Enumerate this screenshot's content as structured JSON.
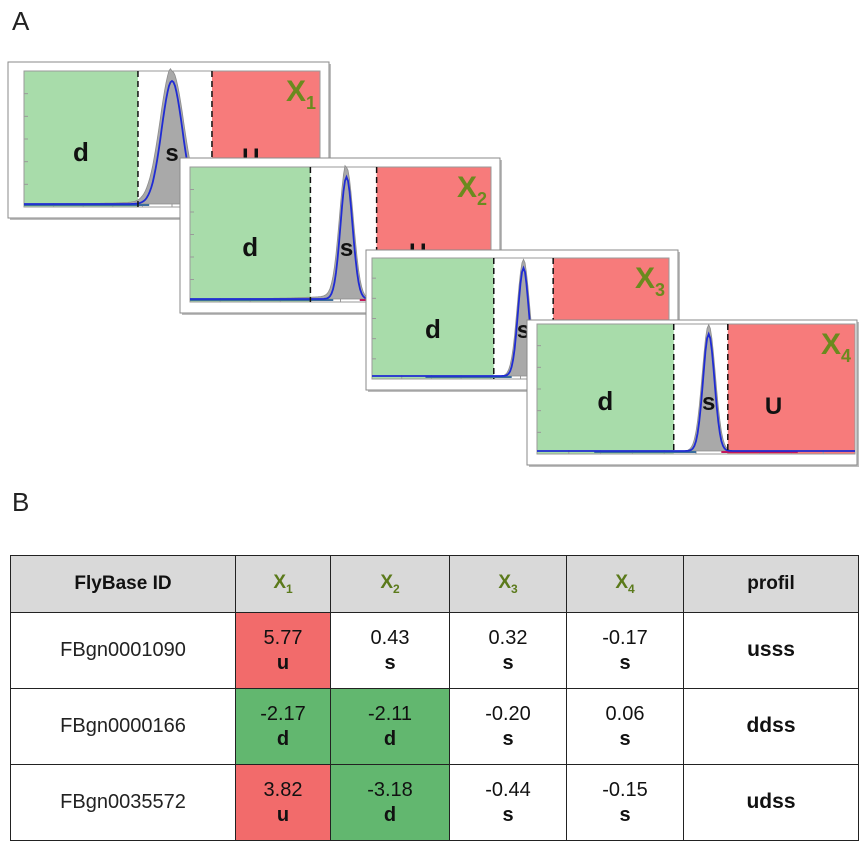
{
  "panel_a_label": "A",
  "panel_b_label": "B",
  "region_labels": {
    "down": "d",
    "steady": "s",
    "up": "U"
  },
  "variable_letter": "X",
  "colors": {
    "down_region": "#a8dcaa",
    "up_region": "#f77b7b",
    "density_fill": "#a9a9a9",
    "fit_curve": "#1f2bd4",
    "title_green": "#6b8a1e",
    "table_up": "#f26b6b",
    "table_down": "#62b76f",
    "header_bg": "#d9d9d9"
  },
  "plots": [
    {
      "name": "X",
      "subscript": "1"
    },
    {
      "name": "X",
      "subscript": "2"
    },
    {
      "name": "X",
      "subscript": "3"
    },
    {
      "name": "X",
      "subscript": "4"
    }
  ],
  "table": {
    "headers": {
      "id": "FlyBase ID",
      "x1": "X",
      "x1_sub": "1",
      "x2": "X",
      "x2_sub": "2",
      "x3": "X",
      "x3_sub": "3",
      "x4": "X",
      "x4_sub": "4",
      "profile": "profil"
    },
    "rows": [
      {
        "id": "FBgn0001090",
        "cells": [
          {
            "value": "5.77",
            "cls": "u"
          },
          {
            "value": "0.43",
            "cls": "s"
          },
          {
            "value": "0.32",
            "cls": "s"
          },
          {
            "value": "-0.17",
            "cls": "s"
          }
        ],
        "profile": "usss"
      },
      {
        "id": "FBgn0000166",
        "cells": [
          {
            "value": "-2.17",
            "cls": "d"
          },
          {
            "value": "-2.11",
            "cls": "d"
          },
          {
            "value": "-0.20",
            "cls": "s"
          },
          {
            "value": "0.06",
            "cls": "s"
          }
        ],
        "profile": "ddss"
      },
      {
        "id": "FBgn0035572",
        "cells": [
          {
            "value": "3.82",
            "cls": "u"
          },
          {
            "value": "-3.18",
            "cls": "d"
          },
          {
            "value": "-0.44",
            "cls": "s"
          },
          {
            "value": "-0.15",
            "cls": "s"
          }
        ],
        "profile": "udss"
      }
    ]
  }
}
